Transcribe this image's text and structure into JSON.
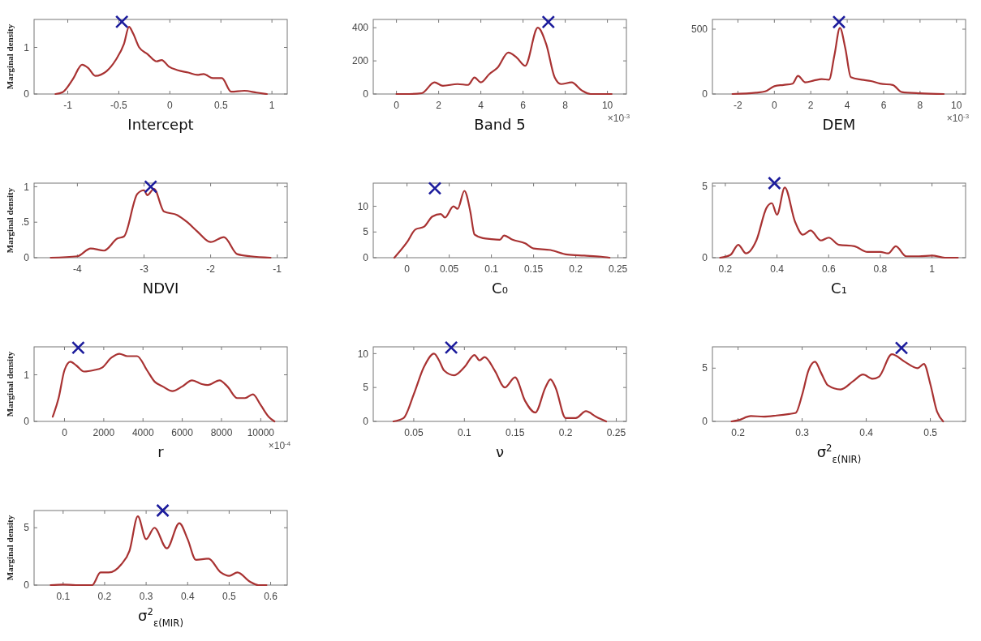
{
  "chart_data": [
    {
      "type": "line",
      "xlabel": "Intercept",
      "ylabel": "Marginal density",
      "xlim": [
        -1.33,
        1.15
      ],
      "ylim": [
        0,
        1.6
      ],
      "xticks": [
        -1,
        -0.5,
        0,
        0.5,
        1
      ],
      "yticks": [
        0,
        1
      ],
      "series": [
        {
          "color": "#a83232",
          "x": [
            -1.12,
            -1.05,
            -0.95,
            -0.86,
            -0.8,
            -0.73,
            -0.62,
            -0.53,
            -0.45,
            -0.4,
            -0.36,
            -0.3,
            -0.22,
            -0.13,
            -0.08,
            -0.01,
            0.08,
            0.18,
            0.27,
            0.33,
            0.42,
            0.51,
            0.6,
            0.73,
            0.85,
            0.95
          ],
          "values": [
            0,
            0.04,
            0.32,
            0.63,
            0.56,
            0.39,
            0.49,
            0.73,
            1.07,
            1.44,
            1.3,
            1.0,
            0.86,
            0.7,
            0.73,
            0.59,
            0.51,
            0.46,
            0.41,
            0.43,
            0.34,
            0.34,
            0.05,
            0.07,
            0.03,
            0
          ]
        },
        {
          "type": "scatter",
          "marker": "cross",
          "color": "#1c1c9c",
          "x": [
            -0.47
          ],
          "values": [
            1.55
          ]
        }
      ]
    },
    {
      "type": "line",
      "xlabel": "Band 5",
      "xlim": [
        -1.1,
        10.9
      ],
      "ylim": [
        0,
        450
      ],
      "xticks": [
        0,
        2,
        4,
        6,
        8,
        10
      ],
      "yticks": [
        0,
        200,
        400
      ],
      "annotations": [
        "×10$^{-3}$"
      ],
      "series": [
        {
          "color": "#a83232",
          "x": [
            0,
            0.6,
            1.2,
            1.8,
            2.2,
            2.9,
            3.4,
            3.7,
            4.0,
            4.4,
            4.8,
            5.3,
            5.7,
            6.1,
            6.7,
            7.1,
            7.5,
            7.8,
            8.3,
            8.8,
            9.2,
            10.2
          ],
          "values": [
            0,
            0,
            5,
            70,
            50,
            60,
            55,
            100,
            70,
            120,
            160,
            250,
            220,
            170,
            400,
            300,
            100,
            60,
            70,
            20,
            0,
            0
          ]
        },
        {
          "type": "scatter",
          "marker": "cross",
          "color": "#1c1c9c",
          "x": [
            7.2
          ],
          "values": [
            435
          ]
        }
      ]
    },
    {
      "type": "line",
      "xlabel": "DEM",
      "xlim": [
        -3.4,
        10.5
      ],
      "ylim": [
        0,
        575
      ],
      "xticks": [
        -2,
        0,
        2,
        4,
        6,
        8,
        10
      ],
      "yticks": [
        0,
        500
      ],
      "annotations": [
        "×10$^{-3}$"
      ],
      "series": [
        {
          "color": "#a83232",
          "x": [
            -2.3,
            -1,
            -0.5,
            0,
            0.5,
            1.0,
            1.3,
            1.7,
            2.2,
            2.6,
            3.0,
            3.3,
            3.6,
            3.9,
            4.2,
            4.8,
            5.3,
            5.8,
            6.5,
            7.0,
            8,
            9.3
          ],
          "values": [
            0,
            10,
            20,
            60,
            70,
            80,
            140,
            90,
            105,
            115,
            110,
            300,
            510,
            350,
            130,
            110,
            100,
            80,
            70,
            15,
            5,
            0
          ]
        },
        {
          "type": "scatter",
          "marker": "cross",
          "color": "#1c1c9c",
          "x": [
            3.55
          ],
          "values": [
            555
          ]
        }
      ]
    },
    {
      "type": "line",
      "xlabel": "NDVI",
      "ylabel": "Marginal density",
      "xlim": [
        -4.65,
        -0.85
      ],
      "ylim": [
        0,
        1.05
      ],
      "xticks": [
        -4,
        -3,
        -2,
        -1
      ],
      "yticks": [
        0,
        {
          "value": 0.5,
          "label": ".5"
        },
        1
      ],
      "series": [
        {
          "color": "#a83232",
          "x": [
            -4.4,
            -4.0,
            -3.8,
            -3.6,
            -3.4,
            -3.3,
            -3.1,
            -3.0,
            -2.95,
            -2.85,
            -2.7,
            -2.5,
            -2.35,
            -2.2,
            -2.0,
            -1.8,
            -1.6,
            -1.4,
            -1.1
          ],
          "values": [
            0,
            0.02,
            0.13,
            0.1,
            0.27,
            0.3,
            0.9,
            0.95,
            0.88,
            0.97,
            0.65,
            0.6,
            0.5,
            0.37,
            0.22,
            0.29,
            0.05,
            0.02,
            0
          ]
        },
        {
          "type": "scatter",
          "marker": "cross",
          "color": "#1c1c9c",
          "x": [
            -2.9
          ],
          "values": [
            1.0
          ]
        }
      ]
    },
    {
      "type": "line",
      "xlabel": "C₀",
      "xlim": [
        -0.04,
        0.26
      ],
      "ylim": [
        0,
        14.5
      ],
      "xticks": [
        0,
        0.05,
        0.1,
        0.15,
        0.2,
        0.25
      ],
      "yticks": [
        0,
        5,
        10
      ],
      "series": [
        {
          "color": "#a83232",
          "x": [
            -0.015,
            0,
            0.01,
            0.02,
            0.03,
            0.04,
            0.045,
            0.055,
            0.06,
            0.068,
            0.075,
            0.08,
            0.09,
            0.1,
            0.11,
            0.115,
            0.125,
            0.14,
            0.15,
            0.17,
            0.19,
            0.21,
            0.23,
            0.24
          ],
          "values": [
            0,
            3,
            5.5,
            6,
            8,
            8.5,
            7.8,
            10,
            9.5,
            13,
            9,
            4.5,
            3.8,
            3.6,
            3.5,
            4.3,
            3.5,
            2.8,
            1.8,
            1.5,
            0.6,
            0.4,
            0.2,
            0
          ]
        },
        {
          "type": "scatter",
          "marker": "cross",
          "color": "#1c1c9c",
          "x": [
            0.033
          ],
          "values": [
            13.5
          ]
        }
      ]
    },
    {
      "type": "line",
      "xlabel": "C₁",
      "xlim": [
        0.15,
        1.13
      ],
      "ylim": [
        0,
        5.2
      ],
      "xticks": [
        0.2,
        0.4,
        0.6,
        0.8,
        1
      ],
      "yticks": [
        0,
        5
      ],
      "series": [
        {
          "color": "#a83232",
          "x": [
            0.18,
            0.22,
            0.25,
            0.28,
            0.32,
            0.36,
            0.38,
            0.4,
            0.43,
            0.47,
            0.5,
            0.53,
            0.57,
            0.6,
            0.64,
            0.7,
            0.75,
            0.8,
            0.83,
            0.86,
            0.9,
            0.95,
            1.0,
            1.05,
            1.1
          ],
          "values": [
            0,
            0.2,
            0.9,
            0.3,
            1.2,
            3.5,
            3.8,
            3.0,
            4.9,
            2.5,
            1.6,
            1.9,
            1.2,
            1.4,
            0.9,
            0.8,
            0.4,
            0.4,
            0.3,
            0.8,
            0.1,
            0.1,
            0.15,
            0,
            0
          ]
        },
        {
          "type": "scatter",
          "marker": "cross",
          "color": "#1c1c9c",
          "x": [
            0.39
          ],
          "values": [
            5.2
          ]
        }
      ]
    },
    {
      "type": "line",
      "xlabel": "r",
      "ylabel": "Marginal density",
      "xlim": [
        -1550,
        11350
      ],
      "ylim": [
        0,
        1.6
      ],
      "xticks": [
        0,
        2000,
        4000,
        6000,
        8000,
        10000
      ],
      "yticks": [
        0,
        1
      ],
      "annotations": [
        "×10$^{-4}$"
      ],
      "series": [
        {
          "color": "#a83232",
          "x": [
            -600,
            -300,
            0,
            300,
            600,
            1000,
            1500,
            1900,
            2400,
            2800,
            3200,
            3700,
            4200,
            4600,
            5000,
            5500,
            6000,
            6500,
            7000,
            7300,
            7900,
            8300,
            8800,
            9200,
            9600,
            10000,
            10400,
            10700
          ],
          "values": [
            0.1,
            0.5,
            1.1,
            1.28,
            1.2,
            1.07,
            1.1,
            1.15,
            1.37,
            1.45,
            1.4,
            1.4,
            1.1,
            0.85,
            0.75,
            0.65,
            0.75,
            0.88,
            0.8,
            0.78,
            0.88,
            0.75,
            0.5,
            0.5,
            0.58,
            0.35,
            0.1,
            0
          ]
        },
        {
          "type": "scatter",
          "marker": "cross",
          "color": "#1c1c9c",
          "x": [
            700
          ],
          "values": [
            1.58
          ]
        }
      ]
    },
    {
      "type": "line",
      "xlabel": "ν",
      "xlim": [
        0.01,
        0.26
      ],
      "ylim": [
        0,
        11
      ],
      "xticks": [
        0.05,
        0.1,
        0.15,
        0.2,
        0.25
      ],
      "yticks": [
        0,
        5,
        10
      ],
      "series": [
        {
          "color": "#a83232",
          "x": [
            0.03,
            0.04,
            0.05,
            0.06,
            0.07,
            0.075,
            0.08,
            0.09,
            0.1,
            0.11,
            0.115,
            0.12,
            0.13,
            0.14,
            0.15,
            0.16,
            0.17,
            0.18,
            0.185,
            0.19,
            0.2,
            0.21,
            0.22,
            0.23,
            0.24
          ],
          "values": [
            0,
            0.5,
            4,
            8,
            10,
            9,
            7.5,
            6.8,
            8,
            9.8,
            9,
            9.5,
            7.5,
            5,
            6.5,
            3,
            1.3,
            5,
            6.2,
            5,
            0.5,
            0.5,
            1.5,
            0.7,
            0
          ]
        },
        {
          "type": "scatter",
          "marker": "cross",
          "color": "#1c1c9c",
          "x": [
            0.087
          ],
          "values": [
            10.9
          ]
        }
      ]
    },
    {
      "type": "line",
      "xlabel": "σ$^{2}$$_{ε(NIR)}$",
      "xlim": [
        0.16,
        0.555
      ],
      "ylim": [
        0,
        7
      ],
      "xticks": [
        0.2,
        0.3,
        0.4,
        0.5
      ],
      "yticks": [
        0,
        5
      ],
      "series": [
        {
          "color": "#a83232",
          "x": [
            0.19,
            0.2,
            0.22,
            0.24,
            0.26,
            0.28,
            0.29,
            0.3,
            0.31,
            0.32,
            0.33,
            0.34,
            0.36,
            0.38,
            0.395,
            0.41,
            0.42,
            0.44,
            0.46,
            0.48,
            0.49,
            0.5,
            0.51,
            0.52
          ],
          "values": [
            0,
            0.1,
            0.5,
            0.45,
            0.55,
            0.7,
            0.8,
            2.5,
            4.8,
            5.6,
            4.5,
            3.4,
            3.0,
            3.8,
            4.4,
            4.0,
            4.2,
            6.3,
            5.6,
            5.0,
            5.4,
            3.5,
            1.0,
            0
          ]
        },
        {
          "type": "scatter",
          "marker": "cross",
          "color": "#1c1c9c",
          "x": [
            0.455
          ],
          "values": [
            6.9
          ]
        }
      ]
    },
    {
      "type": "line",
      "xlabel": "σ$^{2}$$_{ε(MIR)}$",
      "ylabel": "Marginal density",
      "xlim": [
        0.03,
        0.64
      ],
      "ylim": [
        0,
        6.5
      ],
      "xticks": [
        0.1,
        0.2,
        0.3,
        0.4,
        0.5,
        0.6
      ],
      "yticks": [
        0,
        5
      ],
      "series": [
        {
          "color": "#a83232",
          "x": [
            0.07,
            0.1,
            0.13,
            0.17,
            0.19,
            0.21,
            0.24,
            0.26,
            0.28,
            0.3,
            0.32,
            0.35,
            0.38,
            0.4,
            0.42,
            0.45,
            0.48,
            0.5,
            0.52,
            0.55,
            0.57,
            0.59
          ],
          "values": [
            0,
            0.05,
            0,
            0,
            1.1,
            1.1,
            1.8,
            3,
            6,
            4,
            5,
            3.2,
            5.4,
            4,
            2.2,
            2.3,
            1.1,
            0.8,
            1.1,
            0.3,
            0,
            0
          ]
        },
        {
          "type": "scatter",
          "marker": "cross",
          "color": "#1c1c9c",
          "x": [
            0.34
          ],
          "values": [
            6.5
          ]
        }
      ]
    }
  ]
}
